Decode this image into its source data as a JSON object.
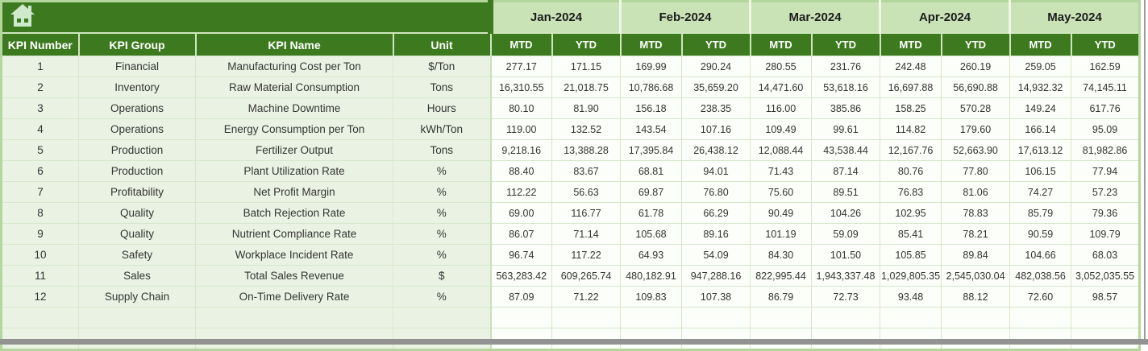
{
  "header": {
    "columns": [
      "KPI Number",
      "KPI Group",
      "KPI Name",
      "Unit"
    ],
    "months": [
      {
        "label": "Jan-2024"
      },
      {
        "label": "Feb-2024"
      },
      {
        "label": "Mar-2024"
      },
      {
        "label": "Apr-2024"
      },
      {
        "label": "May-2024"
      }
    ],
    "subheaders": [
      "MTD",
      "YTD"
    ]
  },
  "colors": {
    "header_dark_green": "#3d7a1f",
    "month_light_green": "#c9e3b6",
    "row_tint_green": "#eaf3e3",
    "data_cell_white": "#fcfef9",
    "gridline_green": "#d5e7ca",
    "outer_border_green": "#b2d69b",
    "scrollbar_gray": "#929292",
    "home_icon_pale_green": "#cfe9cd"
  },
  "rows": [
    {
      "num": "1",
      "group": "Financial",
      "name": "Manufacturing Cost per Ton",
      "unit": "$/Ton",
      "values": [
        "277.17",
        "171.15",
        "169.99",
        "290.24",
        "280.55",
        "231.76",
        "242.48",
        "260.19",
        "259.05",
        "162.59"
      ]
    },
    {
      "num": "2",
      "group": "Inventory",
      "name": "Raw Material Consumption",
      "unit": "Tons",
      "values": [
        "16,310.55",
        "21,018.75",
        "10,786.68",
        "35,659.20",
        "14,471.60",
        "53,618.16",
        "16,697.88",
        "56,690.88",
        "14,932.32",
        "74,145.11"
      ]
    },
    {
      "num": "3",
      "group": "Operations",
      "name": "Machine Downtime",
      "unit": "Hours",
      "values": [
        "80.10",
        "81.90",
        "156.18",
        "238.35",
        "116.00",
        "385.86",
        "158.25",
        "570.28",
        "149.24",
        "617.76"
      ]
    },
    {
      "num": "4",
      "group": "Operations",
      "name": "Energy Consumption per Ton",
      "unit": "kWh/Ton",
      "values": [
        "119.00",
        "132.52",
        "143.54",
        "107.16",
        "109.49",
        "99.61",
        "114.82",
        "179.60",
        "166.14",
        "95.09"
      ]
    },
    {
      "num": "5",
      "group": "Production",
      "name": "Fertilizer Output",
      "unit": "Tons",
      "values": [
        "9,218.16",
        "13,388.28",
        "17,395.84",
        "26,438.12",
        "12,088.44",
        "43,538.44",
        "12,167.76",
        "52,663.90",
        "17,613.12",
        "81,982.86"
      ]
    },
    {
      "num": "6",
      "group": "Production",
      "name": "Plant Utilization Rate",
      "unit": "%",
      "values": [
        "88.40",
        "83.67",
        "68.81",
        "94.01",
        "71.43",
        "87.14",
        "80.76",
        "77.80",
        "106.15",
        "77.94"
      ]
    },
    {
      "num": "7",
      "group": "Profitability",
      "name": "Net Profit Margin",
      "unit": "%",
      "values": [
        "112.22",
        "56.63",
        "69.87",
        "76.80",
        "75.60",
        "89.51",
        "76.83",
        "81.06",
        "74.27",
        "57.23"
      ]
    },
    {
      "num": "8",
      "group": "Quality",
      "name": "Batch Rejection Rate",
      "unit": "%",
      "values": [
        "69.00",
        "116.77",
        "61.78",
        "66.29",
        "90.49",
        "104.26",
        "102.95",
        "78.83",
        "85.79",
        "79.36"
      ]
    },
    {
      "num": "9",
      "group": "Quality",
      "name": "Nutrient Compliance Rate",
      "unit": "%",
      "values": [
        "86.07",
        "71.14",
        "105.68",
        "89.16",
        "101.19",
        "59.09",
        "85.41",
        "78.21",
        "90.59",
        "109.79"
      ]
    },
    {
      "num": "10",
      "group": "Safety",
      "name": "Workplace Incident Rate",
      "unit": "%",
      "values": [
        "96.74",
        "117.22",
        "64.93",
        "54.09",
        "84.30",
        "101.50",
        "105.85",
        "89.84",
        "104.66",
        "68.03"
      ]
    },
    {
      "num": "11",
      "group": "Sales",
      "name": "Total Sales Revenue",
      "unit": "$",
      "values": [
        "563,283.42",
        "609,265.74",
        "480,182.91",
        "947,288.16",
        "822,995.44",
        "1,943,337.48",
        "1,029,805.35",
        "2,545,030.04",
        "482,038.56",
        "3,052,035.55"
      ]
    },
    {
      "num": "12",
      "group": "Supply Chain",
      "name": "On-Time Delivery Rate",
      "unit": "%",
      "values": [
        "87.09",
        "71.22",
        "109.83",
        "107.38",
        "86.79",
        "72.73",
        "93.48",
        "88.12",
        "72.60",
        "98.57"
      ]
    }
  ],
  "empty_row_count": 2
}
